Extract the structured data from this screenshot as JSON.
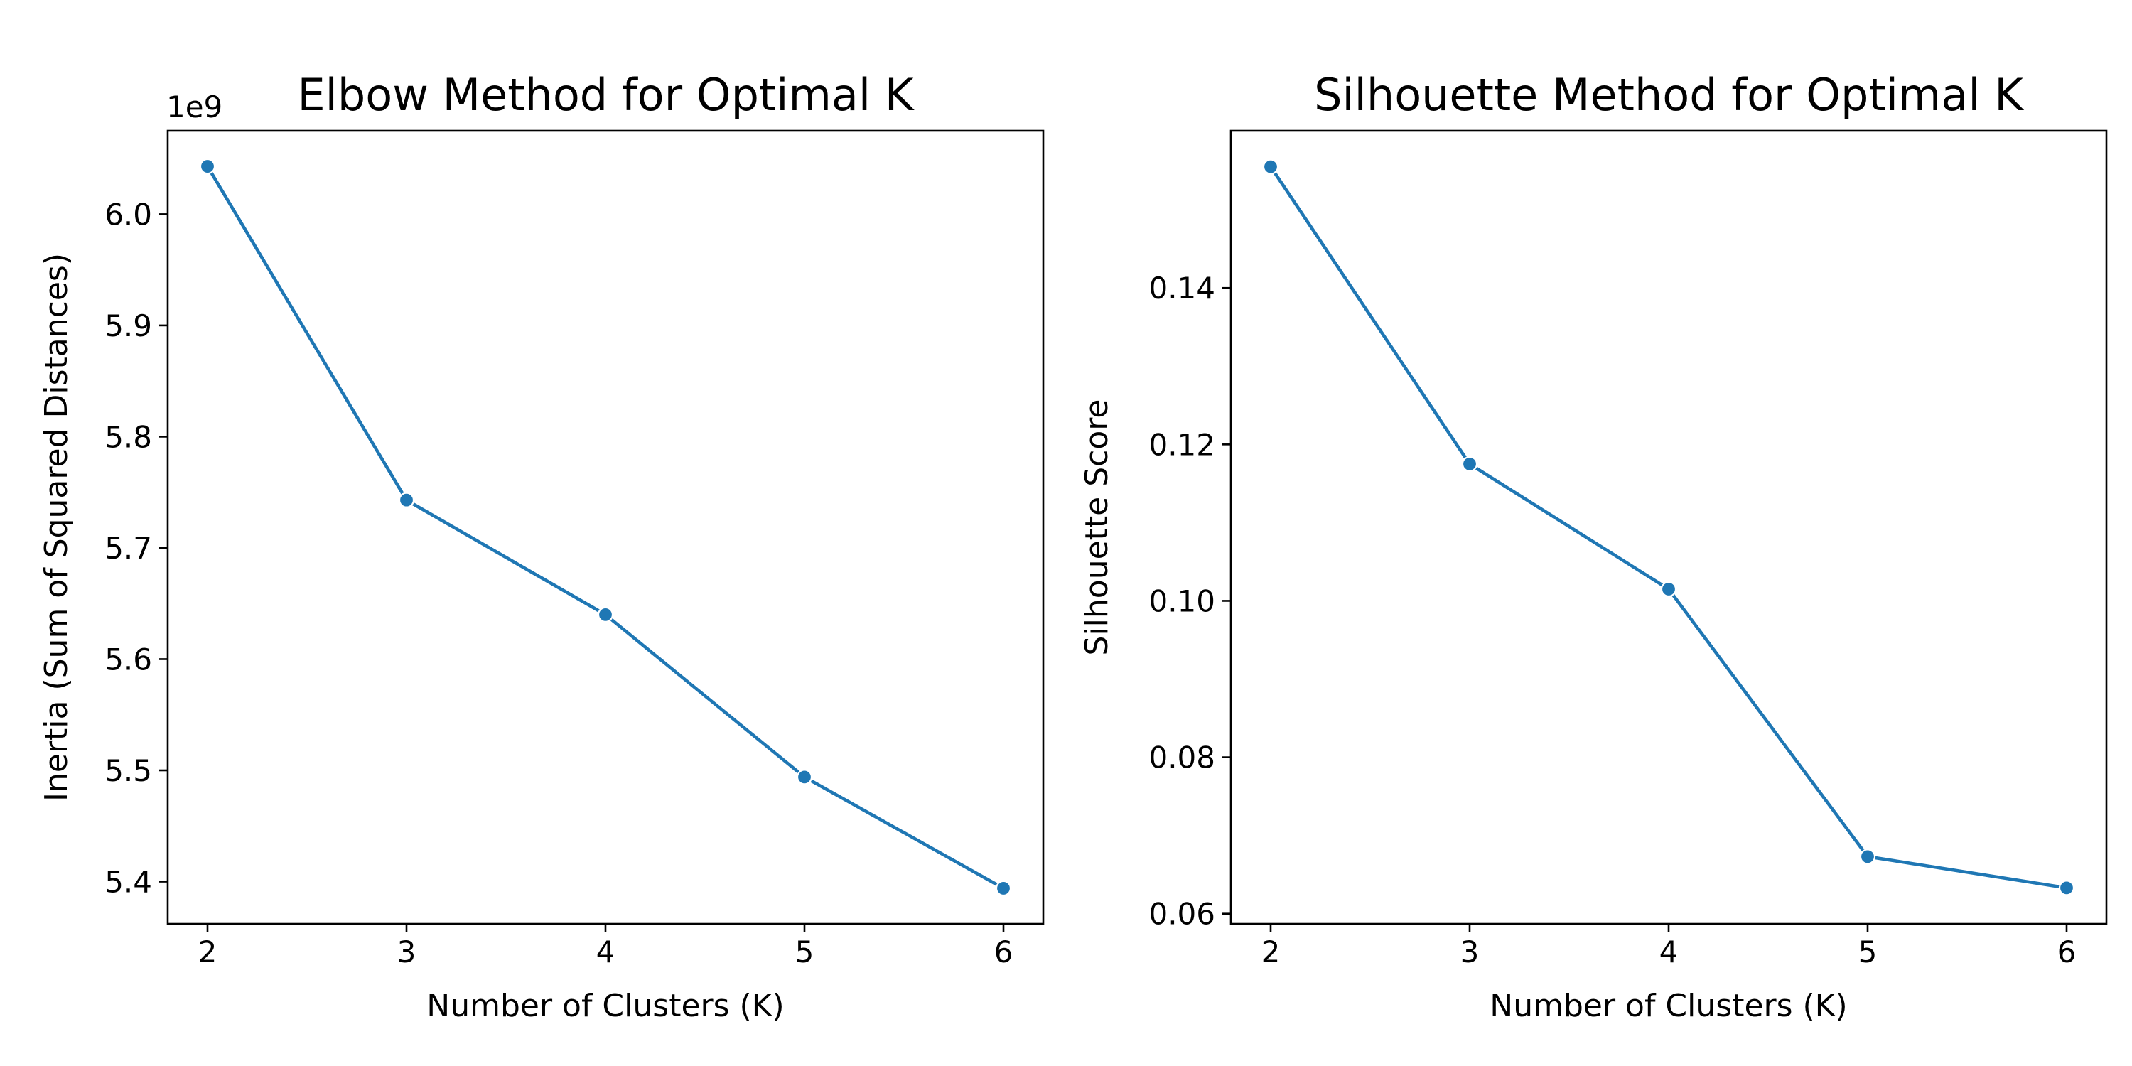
{
  "chart_data": [
    {
      "type": "line",
      "title": "Elbow Method for Optimal K",
      "xlabel": "Number of Clusters (K)",
      "ylabel": "Inertia (Sum of Squared Distances)",
      "offset_text": "1e9",
      "x": [
        2,
        3,
        4,
        5,
        6
      ],
      "y": [
        6.043,
        5.743,
        5.64,
        5.494,
        5.394
      ],
      "xlim": [
        1.8,
        6.2
      ],
      "ylim": [
        5.362,
        6.075
      ],
      "xticks": [
        2,
        3,
        4,
        5,
        6
      ],
      "xtick_labels": [
        "2",
        "3",
        "4",
        "5",
        "6"
      ],
      "yticks": [
        5.4,
        5.5,
        5.6,
        5.7,
        5.8,
        5.9,
        6.0
      ],
      "ytick_labels": [
        "5.4",
        "5.5",
        "5.6",
        "5.7",
        "5.8",
        "5.9",
        "6.0"
      ],
      "color": "#1f77b4",
      "grid": false
    },
    {
      "type": "line",
      "title": "Silhouette Method for Optimal K",
      "xlabel": "Number of Clusters (K)",
      "ylabel": "Silhouette Score",
      "offset_text": "",
      "x": [
        2,
        3,
        4,
        5,
        6
      ],
      "y": [
        0.1555,
        0.1175,
        0.1015,
        0.0673,
        0.0633
      ],
      "xlim": [
        1.8,
        6.2
      ],
      "ylim": [
        0.0587,
        0.1601
      ],
      "xticks": [
        2,
        3,
        4,
        5,
        6
      ],
      "xtick_labels": [
        "2",
        "3",
        "4",
        "5",
        "6"
      ],
      "yticks": [
        0.06,
        0.08,
        0.1,
        0.12,
        0.14
      ],
      "ytick_labels": [
        "0.06",
        "0.08",
        "0.10",
        "0.12",
        "0.14"
      ],
      "color": "#1f77b4",
      "grid": false
    }
  ]
}
